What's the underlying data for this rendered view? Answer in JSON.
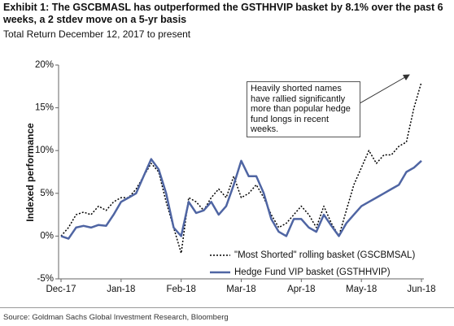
{
  "chart_data": {
    "type": "line",
    "title": "Exhibit 1: The GSCBMASL has outperformed the GSTHHVIP basket by 8.1% over the past 6 weeks, a 2 stdev move on a 5-yr basis",
    "subtitle": "Total Return December 12, 2017 to present",
    "y_label": "Indexed performance",
    "annotation": "Heavily shorted names have rallied significantly more than popular hedge fund longs in recent weeks.",
    "source": "Source: Goldman Sachs Global Investment Research, Bloomberg",
    "categories": [
      "Dec-17",
      null,
      null,
      null,
      null,
      null,
      null,
      null,
      "Jan-18",
      null,
      null,
      null,
      null,
      null,
      null,
      null,
      "Feb-18",
      null,
      null,
      null,
      null,
      null,
      null,
      null,
      "Mar-18",
      null,
      null,
      null,
      null,
      null,
      null,
      null,
      "Apr-18",
      null,
      null,
      null,
      null,
      null,
      null,
      null,
      "May-18",
      null,
      null,
      null,
      null,
      null,
      null,
      null,
      "Jun-18"
    ],
    "series": [
      {
        "name": "\"Most Shorted\" rolling basket (GSCBMSAL)",
        "color": "#000000",
        "linestyle": "dotted",
        "values": [
          0,
          1,
          2.5,
          2.8,
          2.5,
          3.5,
          3,
          4,
          4.5,
          4.5,
          5.5,
          7,
          8.5,
          7.5,
          4,
          1,
          -2,
          4.5,
          4,
          3,
          4.5,
          5.5,
          4.5,
          7,
          4.5,
          5,
          6,
          4.5,
          2.5,
          1,
          1.5,
          2.5,
          3.5,
          2.5,
          1,
          3.5,
          1.5,
          0,
          3,
          6,
          8,
          10,
          8.5,
          9.5,
          9.5,
          10.5,
          11,
          15,
          18
        ]
      },
      {
        "name": "Hedge Fund VIP basket (GSTHHVIP)",
        "color": "#4f65a3",
        "linestyle": "solid",
        "values": [
          0,
          -0.3,
          1,
          1.2,
          1,
          1.3,
          1.2,
          2.5,
          4,
          4.5,
          5,
          7,
          9,
          7.8,
          5,
          1,
          0,
          4,
          2.7,
          3,
          4,
          2.5,
          3.5,
          6,
          8.8,
          7,
          7,
          5,
          2,
          0.5,
          0,
          2,
          2,
          1,
          0.5,
          2.5,
          1.2,
          0,
          1.5,
          2.5,
          3.5,
          4,
          4.5,
          5,
          5.5,
          6,
          7.5,
          8,
          8.8
        ]
      }
    ],
    "ylim": [
      -5,
      20
    ],
    "yticks": [
      {
        "value": -5,
        "label": "-5%"
      },
      {
        "value": 0,
        "label": "0%"
      },
      {
        "value": 5,
        "label": "5%"
      },
      {
        "value": 10,
        "label": "10%"
      },
      {
        "value": 15,
        "label": "15%"
      },
      {
        "value": 20,
        "label": "20%"
      }
    ],
    "grid": false
  }
}
